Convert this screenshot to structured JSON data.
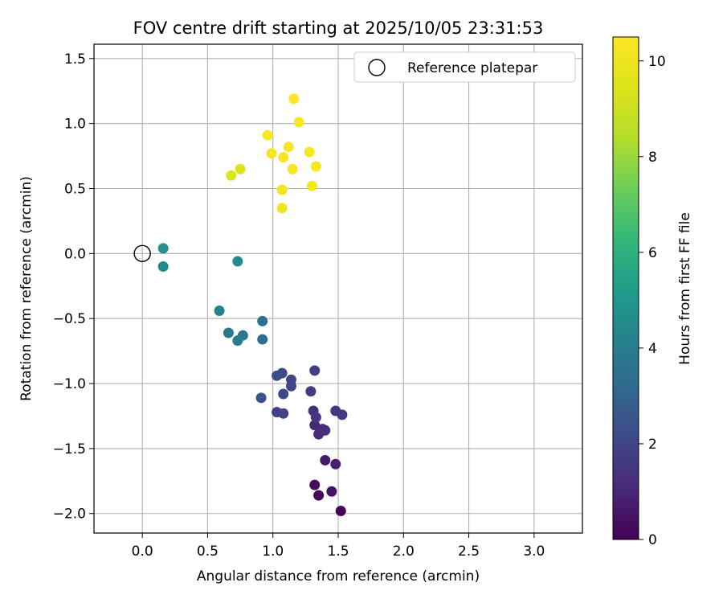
{
  "chart_data": {
    "type": "scatter",
    "title": "FOV centre drift starting at 2025/10/05 23:31:53",
    "xlabel": "Angular distance from reference (arcmin)",
    "ylabel": "Rotation from reference (arcmin)",
    "xlim": [
      -0.37,
      3.37
    ],
    "ylim": [
      -2.15,
      1.61
    ],
    "xticks": [
      0.0,
      0.5,
      1.0,
      1.5,
      2.0,
      2.5,
      3.0
    ],
    "xtick_labels": [
      "0.0",
      "0.5",
      "1.0",
      "1.5",
      "2.0",
      "2.5",
      "3.0"
    ],
    "yticks": [
      1.5,
      1.0,
      0.5,
      0.0,
      -0.5,
      -1.0,
      -1.5,
      -2.0
    ],
    "ytick_labels": [
      "1.5",
      "1.0",
      "0.5",
      "0.0",
      "−0.5",
      "−1.0",
      "−1.5",
      "−2.0"
    ],
    "grid": true,
    "colormap": "viridis",
    "colorbar": {
      "label": "Hours from first FF file",
      "min": 0,
      "max": 10.5,
      "ticks": [
        0,
        2,
        4,
        6,
        8,
        10
      ],
      "tick_labels": [
        "0",
        "2",
        "4",
        "6",
        "8",
        "10"
      ]
    },
    "legend": {
      "position": "top-right",
      "entries": [
        {
          "label": "Reference platepar",
          "marker": "open-circle",
          "color": "#000000"
        }
      ]
    },
    "reference_point": {
      "x": 0.0,
      "y": 0.0,
      "label": "Reference platepar"
    },
    "series": [
      {
        "name": "FOV centre",
        "points": [
          {
            "x": 1.52,
            "y": -1.98,
            "c": 0.1
          },
          {
            "x": 1.35,
            "y": -1.86,
            "c": 0.2
          },
          {
            "x": 1.32,
            "y": -1.78,
            "c": 0.3
          },
          {
            "x": 1.45,
            "y": -1.83,
            "c": 0.5
          },
          {
            "x": 1.4,
            "y": -1.59,
            "c": 0.7
          },
          {
            "x": 1.48,
            "y": -1.62,
            "c": 0.9
          },
          {
            "x": 1.32,
            "y": -1.32,
            "c": 1.0
          },
          {
            "x": 1.35,
            "y": -1.39,
            "c": 1.1
          },
          {
            "x": 1.4,
            "y": -1.36,
            "c": 1.2
          },
          {
            "x": 1.38,
            "y": -1.35,
            "c": 1.3
          },
          {
            "x": 1.31,
            "y": -1.21,
            "c": 1.4
          },
          {
            "x": 1.33,
            "y": -1.26,
            "c": 1.5
          },
          {
            "x": 1.48,
            "y": -1.21,
            "c": 1.6
          },
          {
            "x": 1.53,
            "y": -1.24,
            "c": 1.6
          },
          {
            "x": 1.29,
            "y": -1.06,
            "c": 1.7
          },
          {
            "x": 1.32,
            "y": -0.9,
            "c": 1.8
          },
          {
            "x": 1.03,
            "y": -1.22,
            "c": 1.8
          },
          {
            "x": 1.08,
            "y": -1.23,
            "c": 1.9
          },
          {
            "x": 1.14,
            "y": -1.02,
            "c": 2.0
          },
          {
            "x": 1.14,
            "y": -0.97,
            "c": 2.0
          },
          {
            "x": 1.08,
            "y": -1.08,
            "c": 2.1
          },
          {
            "x": 1.07,
            "y": -0.92,
            "c": 2.1
          },
          {
            "x": 1.03,
            "y": -0.94,
            "c": 2.2
          },
          {
            "x": 0.91,
            "y": -1.11,
            "c": 2.4
          },
          {
            "x": 0.92,
            "y": -0.66,
            "c": 3.4
          },
          {
            "x": 0.92,
            "y": -0.52,
            "c": 3.5
          },
          {
            "x": 0.77,
            "y": -0.63,
            "c": 3.8
          },
          {
            "x": 0.66,
            "y": -0.61,
            "c": 3.9
          },
          {
            "x": 0.73,
            "y": -0.67,
            "c": 4.0
          },
          {
            "x": 0.59,
            "y": -0.44,
            "c": 4.2
          },
          {
            "x": 0.73,
            "y": -0.06,
            "c": 4.5
          },
          {
            "x": 0.16,
            "y": -0.1,
            "c": 4.6
          },
          {
            "x": 0.16,
            "y": 0.04,
            "c": 4.8
          },
          {
            "x": 0.68,
            "y": 0.6,
            "c": 9.4
          },
          {
            "x": 0.75,
            "y": 0.65,
            "c": 9.5
          },
          {
            "x": 1.07,
            "y": 0.35,
            "c": 10.1
          },
          {
            "x": 1.07,
            "y": 0.49,
            "c": 10.1
          },
          {
            "x": 1.3,
            "y": 0.52,
            "c": 10.2
          },
          {
            "x": 1.08,
            "y": 0.74,
            "c": 10.2
          },
          {
            "x": 0.99,
            "y": 0.77,
            "c": 10.2
          },
          {
            "x": 1.15,
            "y": 0.65,
            "c": 10.3
          },
          {
            "x": 1.12,
            "y": 0.82,
            "c": 10.3
          },
          {
            "x": 1.28,
            "y": 0.78,
            "c": 10.3
          },
          {
            "x": 1.33,
            "y": 0.67,
            "c": 10.3
          },
          {
            "x": 0.96,
            "y": 0.91,
            "c": 10.4
          },
          {
            "x": 1.2,
            "y": 1.01,
            "c": 10.4
          },
          {
            "x": 1.16,
            "y": 1.19,
            "c": 10.5
          }
        ]
      }
    ]
  }
}
